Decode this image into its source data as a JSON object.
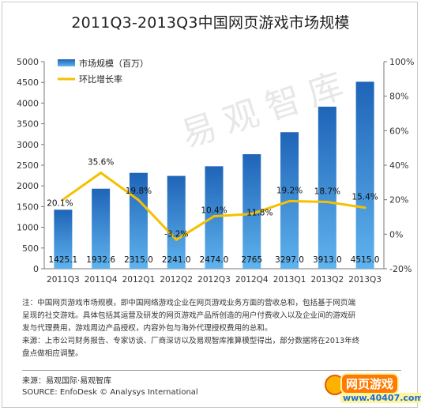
{
  "title": "2011Q3-2013Q3中国网页游戏市场规模",
  "chart_data": {
    "type": "bar+line",
    "categories": [
      "2011Q3",
      "2011Q4",
      "2012Q1",
      "2012Q2",
      "2012Q3",
      "2012Q4",
      "2013Q1",
      "2013Q2",
      "2013Q3"
    ],
    "series": [
      {
        "name": "市场规模（百万）",
        "type": "bar",
        "axis": "left",
        "values": [
          1425.1,
          1932.6,
          2315.0,
          2241.0,
          2474.0,
          2765,
          3297.0,
          3913.0,
          4515.0
        ],
        "labels": [
          "1425.1",
          "1932.6",
          "2315.0",
          "2241.0",
          "2474.0",
          "2765",
          "3297.0",
          "3913.0",
          "4515.0"
        ],
        "color": "#2a74c6"
      },
      {
        "name": "环比增长率",
        "type": "line",
        "axis": "right",
        "values": [
          20.1,
          35.6,
          19.8,
          -3.2,
          10.4,
          11.8,
          19.2,
          18.7,
          15.4
        ],
        "labels": [
          "20.1%",
          "35.6%",
          "19.8%",
          "-3.2%",
          "10.4%",
          "11.8%",
          "19.2%",
          "18.7%",
          "15.4%"
        ],
        "color": "#f5c000"
      }
    ],
    "y_left": {
      "min": 0,
      "max": 5000,
      "step": 500,
      "ticks": [
        "0",
        "500",
        "1000",
        "1500",
        "2000",
        "2500",
        "3000",
        "3500",
        "4000",
        "4500",
        "5000"
      ]
    },
    "y_right": {
      "min": -20,
      "max": 100,
      "step": 20,
      "ticks": [
        "-20%",
        "0%",
        "20%",
        "40%",
        "60%",
        "80%",
        "100%"
      ]
    },
    "grid": false,
    "legend_position": "top-left"
  },
  "notes": {
    "line1": "注：中国网页游戏市场规模，即中国网络游戏企业在网页游戏业务方面的营收总和，包括基于网页端",
    "line2": "呈现的社交游戏。具体包括其运营及研发的网页游戏产品所创造的用户付费收入以及企业间的游戏研",
    "line3": "发与代理费用，游戏周边产品授权，内容外包与海外代理授权费用的总和。",
    "line4": "来源：上市公司财务报告、专家访谈、厂商深访以及易观智库推算模型得出，部分数据将在2013年终",
    "line5": "盘点做相应调整。"
  },
  "source": {
    "cn": "来源：易观国际·易观智库",
    "en": "SOURCE: EnfoDesk © Analysys International"
  },
  "watermark": "易观智库",
  "logo": {
    "brand": "网页游戏",
    "url": "www.40407.com"
  },
  "colors": {
    "bar_top": "#1f64b8",
    "bar_bottom": "#5fb3ee",
    "line": "#f5c000",
    "axis": "#777777"
  }
}
